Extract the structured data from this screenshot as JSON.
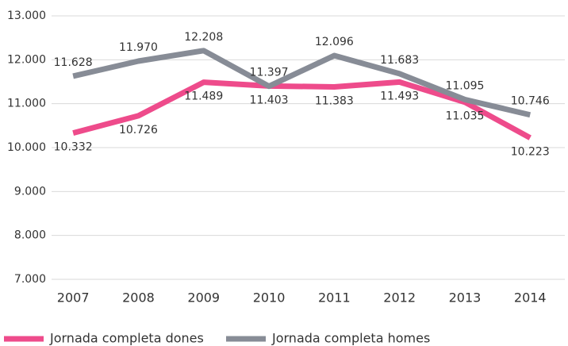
{
  "chart_data": {
    "type": "line",
    "categories": [
      "2007",
      "2008",
      "2009",
      "2010",
      "2011",
      "2012",
      "2013",
      "2014"
    ],
    "series": [
      {
        "name": "Jornada completa dones",
        "color": "#ee4b8b",
        "values": [
          10332,
          10726,
          11489,
          11403,
          11383,
          11493,
          11035,
          10223
        ],
        "value_labels": [
          "10.332",
          "10.726",
          "11.489",
          "11.403",
          "11.383",
          "11.493",
          "11.035",
          "10.223"
        ]
      },
      {
        "name": "Jornada completa homes",
        "color": "#878c96",
        "values": [
          11628,
          11970,
          12208,
          11397,
          12096,
          11683,
          11095,
          10746
        ],
        "value_labels": [
          "11.628",
          "11.970",
          "12.208",
          "11.397",
          "12.096",
          "11.683",
          "11.095",
          "10.746"
        ]
      }
    ],
    "ylim": [
      7000,
      13000
    ],
    "yticks": [
      {
        "value": 7000,
        "label": "7.000"
      },
      {
        "value": 8000,
        "label": "8.000"
      },
      {
        "value": 9000,
        "label": "9.000"
      },
      {
        "value": 10000,
        "label": "10.000"
      },
      {
        "value": 11000,
        "label": "11.000"
      },
      {
        "value": 12000,
        "label": "12.000"
      },
      {
        "value": 13000,
        "label": "13.000"
      }
    ],
    "grid": true,
    "legend": "bottom"
  }
}
